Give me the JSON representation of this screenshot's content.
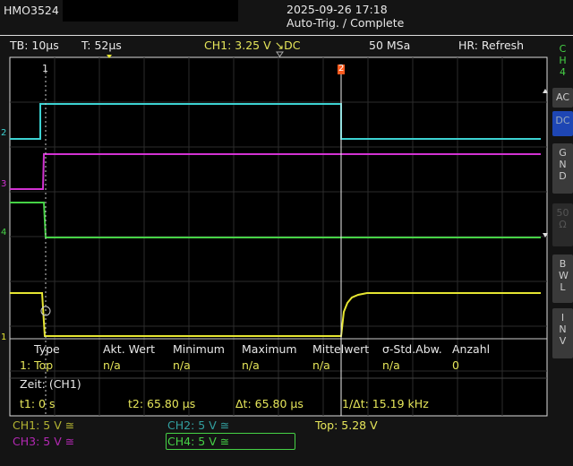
{
  "header": {
    "model": "HMO3524",
    "datetime": "2025-09-26 17:18",
    "status": "Auto-Trig. / Complete"
  },
  "infobar": {
    "timebase": "TB: 10µs",
    "trigger_pos": "T: 52µs",
    "trigger": "CH1: 3.25 V ⿽ DC",
    "trigger_text": "CH1: 3.25 V ↘DC",
    "sample_rate": "50 MSa",
    "mode": "HR: Refresh"
  },
  "measurement": {
    "headers": [
      "Type",
      "Akt. Wert",
      "Minimum",
      "Maximum",
      "Mittelwert",
      "σ-Std.Abw.",
      "Anzahl"
    ],
    "row": [
      "1: Top",
      "n/a",
      "n/a",
      "n/a",
      "n/a",
      "n/a",
      "0"
    ],
    "cursor_title": "Zeit: (CH1)",
    "t1": "t1: 0 s",
    "t2": "t2: 65.80 µs",
    "dt": "Δt: 65.80 µs",
    "inv_dt": "1/Δt: 15.19 kHz"
  },
  "channels": {
    "ch1": "CH1: 5 V ≅",
    "ch2": "CH2: 5 V ≅",
    "ch3": "CH3: 5 V ≅",
    "ch4": "CH4: 5 V ≅",
    "top": "Top: 5.28 V"
  },
  "markers": {
    "cursor1": "1",
    "cursor2": "2",
    "ch1": "1",
    "ch2": "2",
    "ch3": "3",
    "ch4": "4"
  },
  "side_menu": {
    "title": "CH4",
    "buttons": [
      "AC",
      "DC",
      "GND",
      "50Ω",
      "BWL",
      "INV"
    ],
    "active": "DC"
  },
  "colors": {
    "ch1": "#e6e632",
    "ch2": "#3cd2d2",
    "ch3": "#d232d2",
    "ch4": "#46d246",
    "cursor2": "#ff5a1e",
    "active_button": "#1e46b4"
  }
}
